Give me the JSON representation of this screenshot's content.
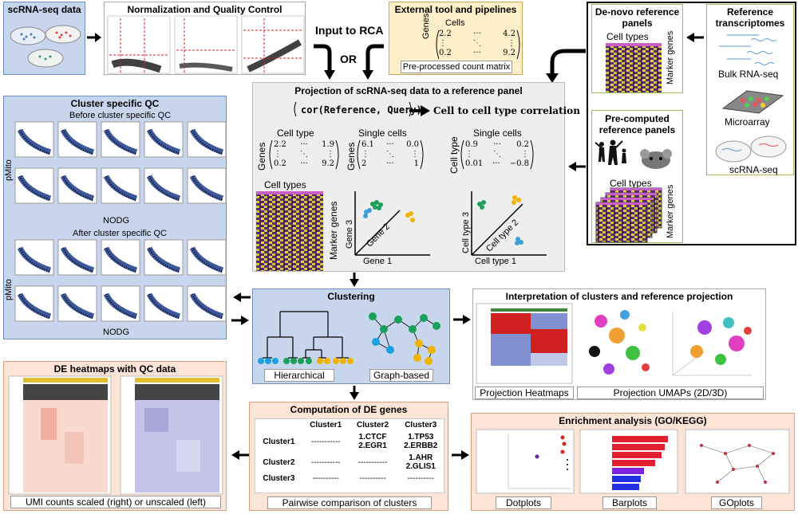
{
  "panels": {
    "scrna": {
      "title": "scRNA-seq data"
    },
    "norm_qc": {
      "title": "Normalization and Quality Control"
    },
    "input_rca": {
      "label": "Input to RCA",
      "or_label": "OR"
    },
    "external": {
      "title": "External tool and pipelines",
      "cells_label": "Cells",
      "genes_label": "Genes",
      "caption": "Pre-processed count matrix",
      "matrix": [
        [
          "2.2",
          "···",
          "4.2"
        ],
        [
          "⋮",
          "⋱",
          "⋮"
        ],
        [
          "0.2",
          "···",
          "9.2"
        ]
      ]
    },
    "denovo": {
      "title_line1": "De-novo reference",
      "title_line2": "panels",
      "cell_types": "Cell types",
      "marker_genes": "Marker genes"
    },
    "reference": {
      "title_line1": "Reference",
      "title_line2": "transcriptomes",
      "bulk": "Bulk RNA-seq",
      "microarray": "Microarray",
      "scrna": "scRNA-seq"
    },
    "precomputed": {
      "title_line1": "Pre-computed",
      "title_line2": "reference panels",
      "cell_types": "Cell types",
      "marker_genes": "Marker genes"
    },
    "projection": {
      "title": "Projection of scRNA-seq data to a reference panel",
      "formula": "cor(Reference, Query)",
      "result": "Cell to cell type correlation",
      "cell_type": "Cell type",
      "single_cells": "Single cells",
      "single_cells_2": "Single cells",
      "genes": "Genes",
      "genes2": "Genes",
      "cell_type_side": "Cell type",
      "m1": [
        [
          "2.2",
          "···",
          "1.9"
        ],
        [
          "⋮",
          "⋱",
          "⋮"
        ],
        [
          "0.2",
          "···",
          "9.2"
        ]
      ],
      "m2": [
        [
          "6.1",
          "···",
          "0.0"
        ],
        [
          "⋮",
          "⋱",
          "⋮"
        ],
        [
          "2",
          "···",
          "1"
        ]
      ],
      "m3": [
        [
          "0.9",
          "···",
          "0.2"
        ],
        [
          "⋮",
          "⋱",
          "⋮"
        ],
        [
          "0.01",
          "···",
          "−0.8"
        ]
      ],
      "heat_label": "Cell types",
      "marker_genes": "Marker genes",
      "gene1": "Gene 1",
      "gene2": "Gene 2",
      "gene3": "Gene 3",
      "ct1": "Cell type 1",
      "ct2": "Cell type 2",
      "ct3": "Cell type 3"
    },
    "cluster_qc": {
      "title": "Cluster specific QC",
      "before": "Before cluster specific QC",
      "after": "After cluster specific QC",
      "ylabel": "pMito",
      "xlabel": "NODG"
    },
    "clustering": {
      "title": "Clustering",
      "hierarchical": "Hierarchical",
      "graph": "Graph-based"
    },
    "interpretation": {
      "title": "Interpretation of clusters and reference projection",
      "heatmaps": "Projection Heatmaps",
      "umaps": "Projection UMAPs (2D/3D)"
    },
    "de_heatmaps": {
      "title": "DE heatmaps with QC data",
      "caption": "UMI counts scaled (right) or unscaled (left)"
    },
    "de_genes": {
      "title": "Computation of DE genes",
      "caption": "Pairwise comparison  of clusters",
      "headers": [
        "",
        "Cluster1",
        "Cluster2",
        "Cluster3"
      ],
      "rows": [
        {
          "name": "Cluster1",
          "c1": "-----------",
          "c2a": "1.CTCF",
          "c2b": "2.EGR1",
          "c3a": "1.TP53",
          "c3b": "2.ERBB2"
        },
        {
          "name": "Cluster2",
          "c1": "-----------",
          "c2": "-----------",
          "c3a": "1.AHR",
          "c3b": "2.GLIS1"
        },
        {
          "name": "Cluster3",
          "c1": "----------",
          "c2": "----------",
          "c3": "----------"
        }
      ]
    },
    "enrichment": {
      "title": "Enrichment analysis (GO/KEGG)",
      "dotplots": "Dotplots",
      "barplots": "Barplots",
      "goplots": "GOplots"
    }
  },
  "colors": {
    "yellow_panel": "#fdefc8",
    "blue_panel": "#c7d6ec",
    "green_border": "#9bbb59",
    "peach_panel": "#fce4d6",
    "gray_panel": "#eeeeee"
  }
}
